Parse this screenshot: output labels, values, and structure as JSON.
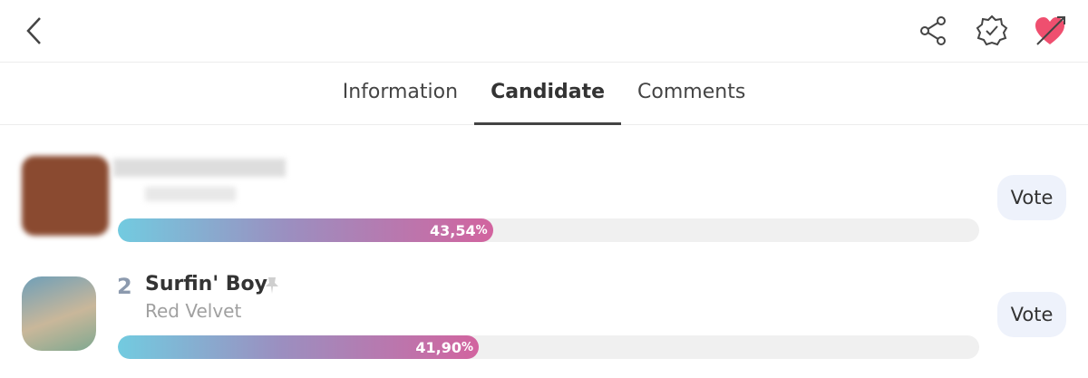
{
  "tabs": [
    "Information",
    "Candidate",
    "Comments"
  ],
  "active_tab": 1,
  "candidates": [
    {
      "percent": 43.54,
      "percent_label": "43,54",
      "percent_unit": "%",
      "vote": "Vote"
    },
    {
      "rank": "2",
      "title": "Surfin' Boy",
      "artist": "Red Velvet",
      "percent": 41.9,
      "percent_label": "41,90",
      "percent_unit": "%",
      "vote": "Vote"
    }
  ]
}
